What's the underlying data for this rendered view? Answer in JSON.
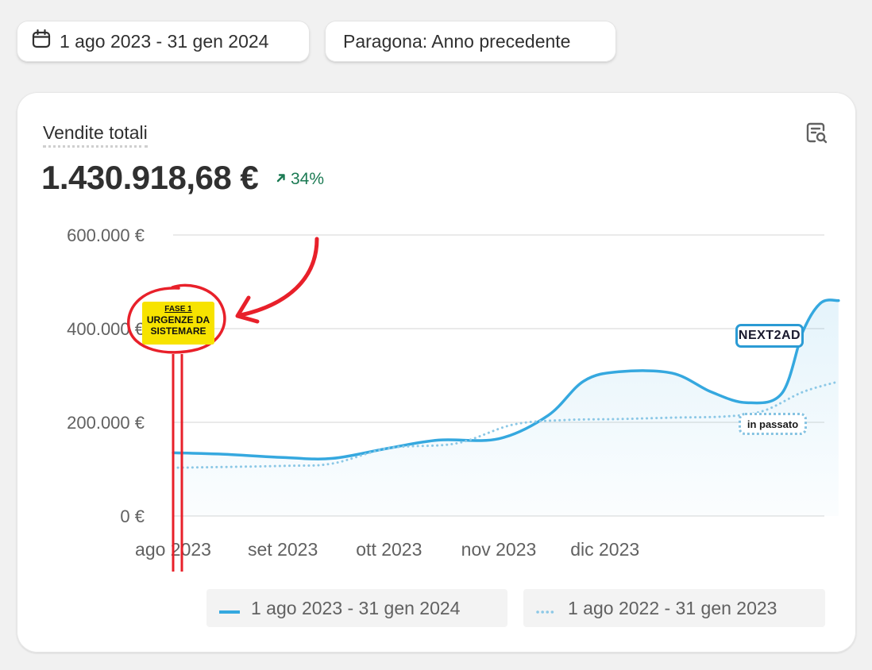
{
  "filters": {
    "date_range": "1 ago 2023 - 31 gen 2024",
    "compare": "Paragona: Anno precedente"
  },
  "metric": {
    "title": "Vendite totali",
    "value": "1.430.918,68 €",
    "delta": "34%"
  },
  "colors": {
    "current": "#35a8df",
    "previous": "#8cc8e6",
    "positive": "#1b7a53",
    "annotation": "#e8202a",
    "stamp": "#f7e300"
  },
  "annotations": {
    "stamp_line1": "FASE 1",
    "stamp_line2": "URGENZE DA",
    "stamp_line3": "SISTEMARE",
    "badge_current": "NEXT2AD",
    "badge_previous": "in passato"
  },
  "chart_data": {
    "type": "line",
    "x": [
      "2023-08-01",
      "2023-09-01",
      "2023-10-01",
      "2023-11-01",
      "2023-12-01",
      "2024-01-01",
      "2024-02-01"
    ],
    "x_tick_labels": [
      "ago 2023",
      "set 2023",
      "ott 2023",
      "nov 2023",
      "dic 2023"
    ],
    "ylim": [
      0,
      600000
    ],
    "y_ticks": [
      0,
      200000,
      400000,
      600000
    ],
    "y_tick_labels": [
      "0 €",
      "200.000 €",
      "400.000 €",
      "600.000 €"
    ],
    "grid": true,
    "legend_position": "bottom",
    "series": [
      {
        "name": "1 ago 2023 - 31 gen 2024",
        "style": "solid",
        "points": [
          [
            "2023-08-01",
            135000
          ],
          [
            "2023-08-15",
            132000
          ],
          [
            "2023-09-01",
            125000
          ],
          [
            "2023-09-15",
            123000
          ],
          [
            "2023-10-01",
            145000
          ],
          [
            "2023-10-15",
            162000
          ],
          [
            "2023-11-01",
            165000
          ],
          [
            "2023-11-15",
            215000
          ],
          [
            "2023-11-25",
            288000
          ],
          [
            "2023-12-05",
            308000
          ],
          [
            "2023-12-20",
            305000
          ],
          [
            "2023-12-31",
            265000
          ],
          [
            "2024-01-10",
            242000
          ],
          [
            "2024-01-20",
            262000
          ],
          [
            "2024-01-26",
            395000
          ],
          [
            "2024-01-31",
            455000
          ],
          [
            "2024-02-05",
            460000
          ]
        ]
      },
      {
        "name": "1 ago 2022 - 31 gen 2023",
        "style": "dotted",
        "points": [
          [
            "2023-08-01",
            103000
          ],
          [
            "2023-09-01",
            107000
          ],
          [
            "2023-09-15",
            112000
          ],
          [
            "2023-10-01",
            145000
          ],
          [
            "2023-10-20",
            155000
          ],
          [
            "2023-11-05",
            195000
          ],
          [
            "2023-11-20",
            205000
          ],
          [
            "2023-12-05",
            207000
          ],
          [
            "2023-12-20",
            210000
          ],
          [
            "2024-01-05",
            213000
          ],
          [
            "2024-01-15",
            225000
          ],
          [
            "2024-01-26",
            265000
          ],
          [
            "2024-02-05",
            287000
          ]
        ]
      }
    ]
  }
}
